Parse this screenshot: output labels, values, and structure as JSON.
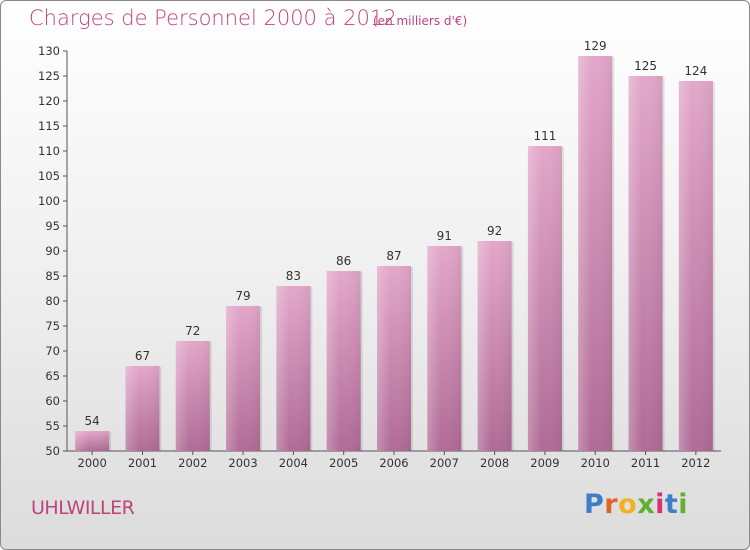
{
  "header": {
    "title": "Charges de Personnel 2000 à 2012",
    "subtitle": "(en milliers d'€)"
  },
  "footer": {
    "commune": "UHLWILLER",
    "brand": "Proxiti"
  },
  "colors": {
    "title": "#c0427e",
    "bar_top": "#e3a7ca",
    "bar_bottom": "#b06b96",
    "axis": "#555555"
  },
  "chart_data": {
    "type": "bar",
    "title": "Charges de Personnel 2000 à 2012",
    "subtitle": "(en milliers d'€)",
    "categories": [
      "2000",
      "2001",
      "2002",
      "2003",
      "2004",
      "2005",
      "2006",
      "2007",
      "2008",
      "2009",
      "2010",
      "2011",
      "2012"
    ],
    "values": [
      54,
      67,
      72,
      79,
      83,
      86,
      87,
      91,
      92,
      111,
      129,
      125,
      124
    ],
    "ylim": [
      50,
      130
    ],
    "yticks": [
      50,
      55,
      60,
      65,
      70,
      75,
      80,
      85,
      90,
      95,
      100,
      105,
      110,
      115,
      120,
      125,
      130
    ],
    "grid": false,
    "legend": "none"
  }
}
